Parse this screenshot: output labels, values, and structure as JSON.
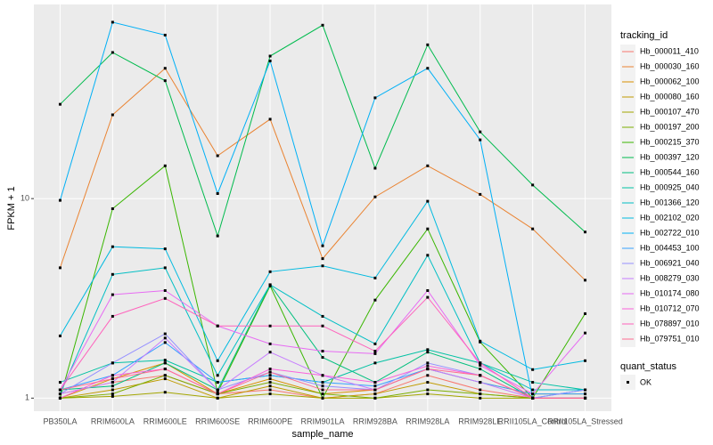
{
  "chart_data": {
    "type": "line",
    "log_y": true,
    "grid": true,
    "x_label": "sample_name",
    "y_label": "FPKM + 1",
    "legend_title": "tracking_id",
    "legend_position": "right",
    "point_legend_title": "quant_status",
    "point_legend_label": "OK",
    "point_color": "#000000",
    "categories": [
      "PB350LA",
      "RRIM600LA",
      "RRIM600LE",
      "RRIM600SE",
      "RRIM600PE",
      "RRIM901LA",
      "RRIM928BA",
      "RRIM928LA",
      "RRIM928LE",
      "RRII105LA_Control",
      "RRII105LA_Stressed"
    ],
    "ylim": [
      0.86,
      94
    ],
    "yticks": [
      1,
      10
    ],
    "series": [
      {
        "name": "Hb_000011_410",
        "color": "#F8766D",
        "values": [
          1.05,
          1.2,
          1.3,
          1.05,
          1.1,
          1.0,
          1.05,
          1.3,
          1.1,
          1.0,
          1.0
        ]
      },
      {
        "name": "Hb_000030_160",
        "color": "#EA8331",
        "values": [
          4.5,
          26.3,
          45,
          16.4,
          25,
          5,
          10.2,
          14.6,
          10.5,
          7.05,
          3.9
        ]
      },
      {
        "name": "Hb_000062_100",
        "color": "#D89000",
        "values": [
          1.0,
          1.25,
          1.5,
          1.05,
          1.25,
          1.05,
          1.1,
          1.4,
          1.2,
          1.05,
          1.05
        ]
      },
      {
        "name": "Hb_000080_160",
        "color": "#C09B00",
        "values": [
          1.0,
          1.1,
          1.25,
          1.0,
          1.15,
          1.0,
          1.05,
          1.2,
          1.05,
          1.0,
          1.0
        ]
      },
      {
        "name": "Hb_000107_470",
        "color": "#A3A500",
        "values": [
          1.0,
          1.02,
          1.07,
          1.0,
          1.05,
          1.0,
          1.0,
          1.05,
          1.0,
          1.0,
          1.0
        ]
      },
      {
        "name": "Hb_000197_200",
        "color": "#7CAE00",
        "values": [
          1.0,
          1.05,
          1.3,
          1.05,
          1.2,
          1.05,
          1.0,
          1.1,
          1.05,
          1.0,
          1.0
        ]
      },
      {
        "name": "Hb_000215_370",
        "color": "#39B600",
        "values": [
          1.0,
          8.9,
          14.6,
          1.07,
          3.65,
          1.0,
          3.1,
          7.05,
          1.91,
          1.0,
          2.65
        ]
      },
      {
        "name": "Hb_000397_120",
        "color": "#00BB4E",
        "values": [
          29.7,
          54,
          39,
          6.5,
          51.8,
          74,
          14.2,
          59,
          21.6,
          11.7,
          6.8
        ]
      },
      {
        "name": "Hb_000544_160",
        "color": "#00BF7D",
        "values": [
          1.1,
          1.15,
          1.5,
          1.1,
          3.7,
          1.6,
          1.2,
          1.7,
          1.4,
          1.0,
          1.0
        ]
      },
      {
        "name": "Hb_000925_040",
        "color": "#00C1A3",
        "values": [
          1.2,
          1.5,
          1.55,
          1.2,
          1.3,
          1.2,
          1.5,
          1.75,
          1.5,
          1.2,
          1.1
        ]
      },
      {
        "name": "Hb_001366_120",
        "color": "#00BFC4",
        "values": [
          1.05,
          4.17,
          4.5,
          1.3,
          3.7,
          2.57,
          1.87,
          5.2,
          1.5,
          1.1,
          1.1
        ]
      },
      {
        "name": "Hb_002102_020",
        "color": "#00BAE0",
        "values": [
          2.05,
          5.74,
          5.6,
          1.54,
          4.3,
          4.6,
          4.0,
          9.7,
          1.93,
          1.39,
          1.54
        ]
      },
      {
        "name": "Hb_002722_010",
        "color": "#00B0F6",
        "values": [
          9.8,
          76.6,
          66,
          10.6,
          49,
          5.8,
          32,
          45,
          19.7,
          1.0,
          1.1
        ]
      },
      {
        "name": "Hb_004453_100",
        "color": "#35A2FF",
        "values": [
          1.1,
          1.3,
          1.9,
          1.2,
          1.3,
          1.2,
          1.15,
          1.4,
          1.2,
          1.05,
          1.05
        ]
      },
      {
        "name": "Hb_006921_040",
        "color": "#9590FF",
        "values": [
          1.05,
          1.5,
          2.1,
          1.1,
          1.35,
          1.15,
          1.1,
          1.5,
          1.3,
          1.0,
          1.1
        ]
      },
      {
        "name": "Hb_008279_030",
        "color": "#C77CFF",
        "values": [
          1.05,
          1.2,
          2.0,
          1.1,
          1.7,
          1.3,
          1.1,
          1.4,
          1.2,
          1.0,
          1.0
        ]
      },
      {
        "name": "Hb_010174_080",
        "color": "#E76BF3",
        "values": [
          1.1,
          3.3,
          3.46,
          2.3,
          1.87,
          1.72,
          1.67,
          3.46,
          1.46,
          1.05,
          2.12
        ]
      },
      {
        "name": "Hb_010712_070",
        "color": "#FA62DB",
        "values": [
          1.0,
          1.3,
          1.4,
          1.05,
          1.4,
          1.3,
          1.2,
          1.45,
          1.3,
          1.0,
          1.0
        ]
      },
      {
        "name": "Hb_078897_010",
        "color": "#FF62BC",
        "values": [
          1.1,
          2.57,
          3.16,
          2.3,
          2.3,
          2.3,
          1.72,
          3.2,
          1.5,
          1.0,
          1.0
        ]
      },
      {
        "name": "Hb_079751_010",
        "color": "#FF6C91",
        "values": [
          1.1,
          1.25,
          1.4,
          1.05,
          1.35,
          1.1,
          1.1,
          1.4,
          1.3,
          1.0,
          1.0
        ]
      }
    ]
  }
}
